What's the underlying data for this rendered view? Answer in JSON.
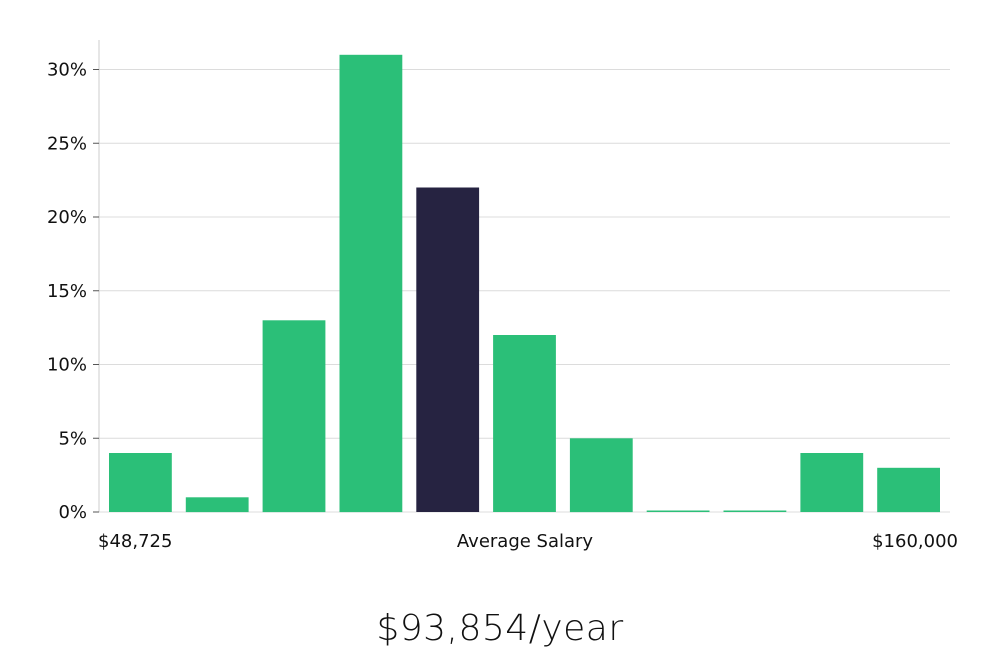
{
  "chart_data": {
    "type": "bar",
    "ylim": [
      0,
      32
    ],
    "yticks": [
      0,
      5,
      10,
      15,
      20,
      25,
      30
    ],
    "ytick_labels": [
      "0%",
      "5%",
      "10%",
      "15%",
      "20%",
      "25%",
      "30%"
    ],
    "values": [
      4,
      1,
      13,
      31,
      22,
      12,
      5,
      0,
      0,
      4,
      3
    ],
    "highlight_index": 4,
    "colors": {
      "bar": "#2bbf78",
      "highlight": "#262341",
      "grid": "#dcdcdc",
      "axis": "#cccccc"
    },
    "x_labels": {
      "left": "$48,725",
      "center": "Average Salary",
      "right": "$160,000"
    },
    "grid": true
  },
  "summary": {
    "salary_text": "$93,854/year"
  }
}
